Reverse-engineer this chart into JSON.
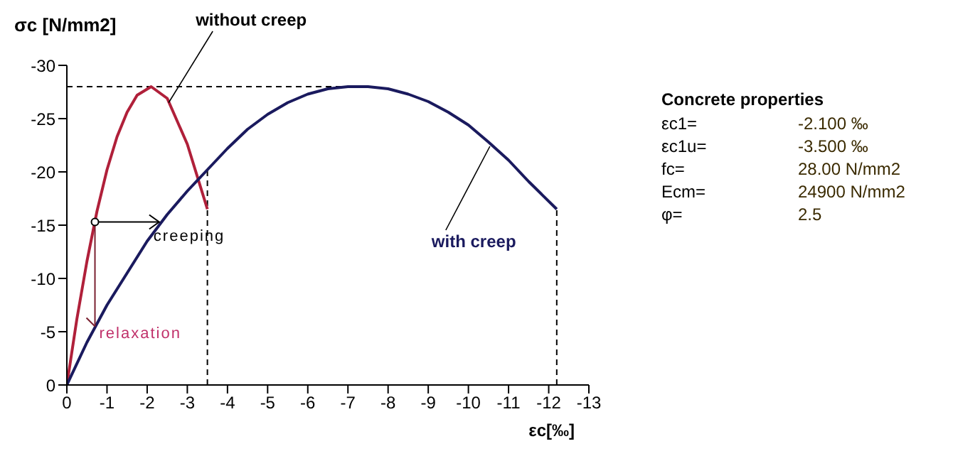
{
  "chart_data": [
    {
      "type": "line",
      "ylabel": "σc [N/mm2]",
      "xlabel": "εc[‰]",
      "xlim": [
        0,
        -13
      ],
      "xticks": [
        0,
        -1,
        -2,
        -3,
        -4,
        -5,
        -6,
        -7,
        -8,
        -9,
        -10,
        -11,
        -12,
        -13
      ],
      "ylim": [
        0,
        -30
      ],
      "yticks": [
        0,
        -5,
        -10,
        -15,
        -20,
        -25,
        -30
      ],
      "series": [
        {
          "name": "without creep",
          "color": "#b0203a",
          "x": [
            0,
            -0.25,
            -0.5,
            -0.75,
            -1,
            -1.25,
            -1.5,
            -1.75,
            -2.1,
            -2.5,
            -3,
            -3.5
          ],
          "values": [
            0,
            -6.2,
            -11.6,
            -16.3,
            -20.2,
            -23.3,
            -25.6,
            -27.2,
            -28,
            -26.9,
            -22.6,
            -16.5
          ]
        },
        {
          "name": "with creep",
          "color": "#1a1a5e",
          "x": [
            0,
            -0.5,
            -1,
            -1.5,
            -2,
            -2.5,
            -3,
            -3.5,
            -4,
            -4.5,
            -5,
            -5.5,
            -6,
            -6.5,
            -7,
            -7.5,
            -8,
            -8.5,
            -9,
            -9.5,
            -10,
            -10.5,
            -11,
            -11.5,
            -12.2
          ],
          "values": [
            0,
            -4,
            -7.5,
            -10.5,
            -13.5,
            -16,
            -18.2,
            -20.2,
            -22.2,
            -24,
            -25.4,
            -26.5,
            -27.3,
            -27.8,
            -28,
            -28,
            -27.8,
            -27.3,
            -26.6,
            -25.6,
            -24.4,
            -22.8,
            -21.1,
            -19.1,
            -16.5
          ]
        }
      ],
      "ref_lines": [
        {
          "axis": "y",
          "value": -28,
          "line_style": "dashed",
          "color": "#000000"
        },
        {
          "axis": "x",
          "value": -3.5,
          "line_style": "dashed",
          "color": "#000000"
        },
        {
          "axis": "x",
          "value": -12.2,
          "line_style": "dashed",
          "color": "#000000"
        }
      ],
      "annotations": [
        {
          "text": "creeping",
          "x": -2.3,
          "y": -15.3
        },
        {
          "text": "relaxation",
          "x": -0.7,
          "y": -5.5
        }
      ],
      "grid": false,
      "legend": false
    },
    {
      "type": "other",
      "title": "Concrete properties",
      "annotations": [
        "εc1=",
        "-2.100 ‰",
        "εc1u=",
        "-3.500 ‰",
        "fc=",
        "28.00 N/mm2",
        "Ecm=",
        "24900 N/mm2",
        "φ=",
        "2.5"
      ]
    }
  ]
}
